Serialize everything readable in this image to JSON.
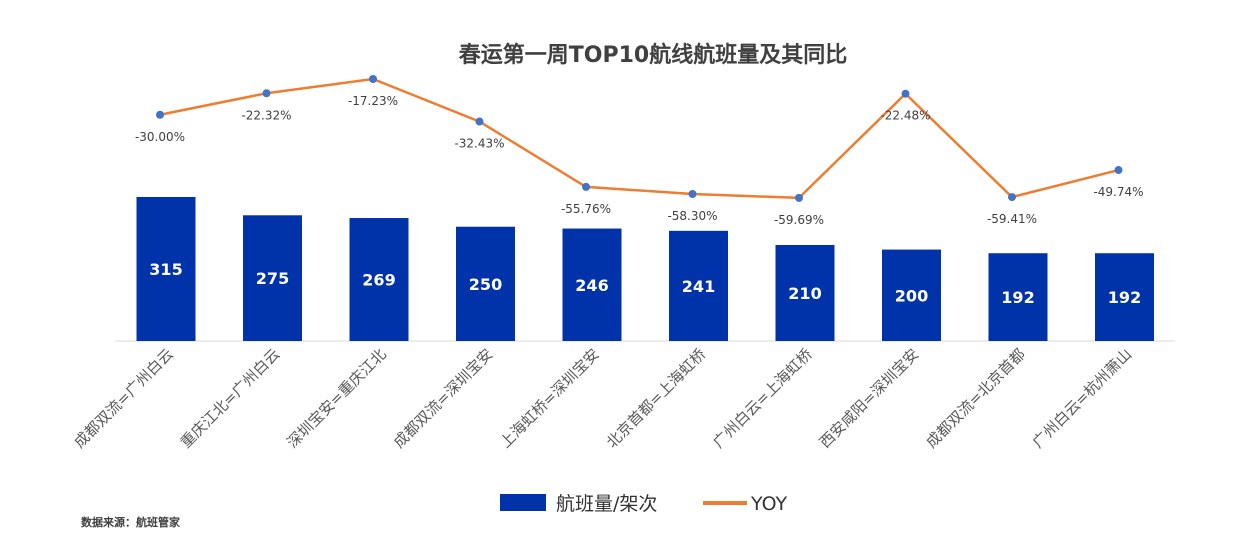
{
  "chart_data": {
    "type": "bar",
    "title": "春运第一周TOP10航线航班量及其同比",
    "categories": [
      "成都双流=广州白云",
      "重庆江北=广州白云",
      "深圳宝安=重庆江北",
      "成都双流=深圳宝安",
      "上海虹桥=深圳宝安",
      "北京首都=上海虹桥",
      "广州白云=上海虹桥",
      "西安咸阳=深圳宝安",
      "成都双流=北京首都",
      "广州白云=杭州萧山"
    ],
    "series": [
      {
        "name": "航班量/架次",
        "type": "bar",
        "color": "#0033AA",
        "values": [
          315,
          275,
          269,
          250,
          246,
          241,
          210,
          200,
          192,
          192
        ]
      },
      {
        "name": "YOY",
        "type": "line",
        "color": "#ED7D31",
        "values": [
          -30.0,
          -22.32,
          -17.23,
          -32.43,
          -55.76,
          -58.3,
          -59.69,
          -22.48,
          -59.41,
          -49.74
        ],
        "labels": [
          "-30.00%",
          "-22.32%",
          "-17.23%",
          "-32.43%",
          "-55.76%",
          "-58.30%",
          "-59.69%",
          "-22.48%",
          "-59.41%",
          "-49.74%"
        ]
      }
    ],
    "legend": {
      "position": "bottom"
    },
    "grid": false,
    "source": "数据来源：航班管家"
  }
}
